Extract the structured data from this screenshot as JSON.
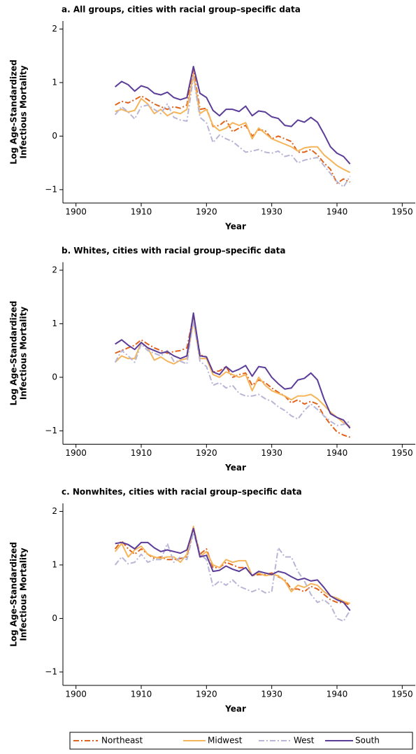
{
  "chart_data": [
    {
      "type": "line",
      "title": "a. All groups, cities with racial group–specific data",
      "xlabel": "Year",
      "ylabel": [
        "Log Age-Standardized",
        "Infectious Mortality"
      ],
      "xlim": [
        1898,
        1952
      ],
      "xticks": [
        1900,
        1910,
        1920,
        1930,
        1940,
        1950
      ],
      "ylim": [
        -1.25,
        2.15
      ],
      "yticks": [
        {
          "value": -1,
          "label": "−1"
        },
        0,
        1,
        2
      ],
      "x": [
        1906,
        1907,
        1908,
        1909,
        1910,
        1911,
        1912,
        1913,
        1914,
        1915,
        1916,
        1917,
        1918,
        1919,
        1920,
        1921,
        1922,
        1923,
        1924,
        1925,
        1926,
        1927,
        1928,
        1929,
        1930,
        1931,
        1932,
        1933,
        1934,
        1935,
        1936,
        1937,
        1938,
        1939,
        1940,
        1941,
        1942
      ],
      "series": [
        {
          "values": [
            0.58,
            0.65,
            0.62,
            0.68,
            0.75,
            0.68,
            0.6,
            0.55,
            0.5,
            0.55,
            0.52,
            0.58,
            1.25,
            0.5,
            0.52,
            0.18,
            0.2,
            0.3,
            0.08,
            0.15,
            0.2,
            0.0,
            0.12,
            0.1,
            -0.05,
            0.0,
            -0.05,
            -0.1,
            -0.3,
            -0.3,
            -0.25,
            -0.35,
            -0.5,
            -0.62,
            -0.88,
            -0.8,
            -0.86
          ]
        },
        {
          "values": [
            0.46,
            0.5,
            0.45,
            0.48,
            0.7,
            0.6,
            0.42,
            0.5,
            0.38,
            0.45,
            0.42,
            0.5,
            1.15,
            0.42,
            0.5,
            0.2,
            0.1,
            0.15,
            0.25,
            0.2,
            0.25,
            -0.05,
            0.15,
            0.05,
            -0.05,
            -0.1,
            -0.15,
            -0.2,
            -0.28,
            -0.22,
            -0.2,
            -0.2,
            -0.35,
            -0.45,
            -0.55,
            -0.62,
            -0.68
          ]
        },
        {
          "values": [
            0.4,
            0.55,
            0.45,
            0.32,
            0.55,
            0.58,
            0.5,
            0.42,
            0.6,
            0.35,
            0.3,
            0.28,
            1.1,
            0.35,
            0.25,
            -0.12,
            0.02,
            -0.05,
            -0.1,
            -0.2,
            -0.3,
            -0.28,
            -0.25,
            -0.3,
            -0.32,
            -0.28,
            -0.38,
            -0.35,
            -0.5,
            -0.45,
            -0.42,
            -0.4,
            -0.55,
            -0.7,
            -0.85,
            -0.95,
            -0.75
          ]
        },
        {
          "values": [
            0.92,
            1.02,
            0.96,
            0.84,
            0.94,
            0.9,
            0.8,
            0.77,
            0.82,
            0.72,
            0.68,
            0.72,
            1.3,
            0.8,
            0.72,
            0.48,
            0.38,
            0.5,
            0.5,
            0.46,
            0.56,
            0.38,
            0.47,
            0.45,
            0.36,
            0.33,
            0.2,
            0.18,
            0.3,
            0.26,
            0.35,
            0.26,
            0.04,
            -0.2,
            -0.32,
            -0.38,
            -0.52
          ]
        }
      ]
    },
    {
      "type": "line",
      "title": "b. Whites, cities with racial group–specific data",
      "xlabel": "Year",
      "ylabel": [
        "Log Age-Standardized",
        "Infectious Mortality"
      ],
      "xlim": [
        1898,
        1952
      ],
      "xticks": [
        1900,
        1910,
        1920,
        1930,
        1940,
        1950
      ],
      "ylim": [
        -1.25,
        2.15
      ],
      "yticks": [
        {
          "value": -1,
          "label": "−1"
        },
        0,
        1,
        2
      ],
      "x": [
        1906,
        1907,
        1908,
        1909,
        1910,
        1911,
        1912,
        1913,
        1914,
        1915,
        1916,
        1917,
        1918,
        1919,
        1920,
        1921,
        1922,
        1923,
        1924,
        1925,
        1926,
        1927,
        1928,
        1929,
        1930,
        1931,
        1932,
        1933,
        1934,
        1935,
        1936,
        1937,
        1938,
        1939,
        1940,
        1941,
        1942
      ],
      "series": [
        {
          "values": [
            0.45,
            0.5,
            0.55,
            0.6,
            0.7,
            0.62,
            0.55,
            0.5,
            0.45,
            0.48,
            0.5,
            0.55,
            1.15,
            0.42,
            0.38,
            0.1,
            0.12,
            0.2,
            0.0,
            0.05,
            0.08,
            -0.15,
            -0.05,
            -0.1,
            -0.2,
            -0.28,
            -0.35,
            -0.48,
            -0.42,
            -0.5,
            -0.45,
            -0.5,
            -0.72,
            -0.88,
            -1.02,
            -1.08,
            -1.12
          ]
        },
        {
          "values": [
            0.28,
            0.4,
            0.35,
            0.35,
            0.65,
            0.55,
            0.32,
            0.38,
            0.3,
            0.25,
            0.32,
            0.35,
            1.05,
            0.35,
            0.35,
            0.05,
            0.0,
            0.1,
            0.05,
            0.0,
            0.05,
            -0.25,
            0.0,
            -0.15,
            -0.25,
            -0.3,
            -0.35,
            -0.42,
            -0.35,
            -0.35,
            -0.32,
            -0.4,
            -0.52,
            -0.65,
            -0.75,
            -0.85,
            -0.92
          ]
        },
        {
          "values": [
            0.28,
            0.5,
            0.4,
            0.28,
            0.62,
            0.5,
            0.45,
            0.4,
            0.5,
            0.3,
            0.3,
            0.25,
            1.08,
            0.3,
            0.2,
            -0.15,
            -0.1,
            -0.2,
            -0.15,
            -0.3,
            -0.35,
            -0.35,
            -0.32,
            -0.4,
            -0.45,
            -0.55,
            -0.62,
            -0.72,
            -0.78,
            -0.62,
            -0.5,
            -0.6,
            -0.72,
            -0.82,
            -0.9,
            -0.88,
            -0.82
          ]
        },
        {
          "values": [
            0.62,
            0.7,
            0.6,
            0.52,
            0.65,
            0.55,
            0.5,
            0.45,
            0.48,
            0.4,
            0.35,
            0.4,
            1.2,
            0.4,
            0.38,
            0.1,
            0.05,
            0.2,
            0.1,
            0.15,
            0.22,
            0.02,
            0.2,
            0.18,
            0.0,
            -0.12,
            -0.22,
            -0.2,
            -0.05,
            -0.02,
            0.08,
            -0.05,
            -0.4,
            -0.68,
            -0.75,
            -0.8,
            -0.95
          ]
        }
      ]
    },
    {
      "type": "line",
      "title": "c. Nonwhites, cities with racial group–specific data",
      "xlabel": "Year",
      "ylabel": [
        "Log Age-Standardized",
        "Infectious Mortality"
      ],
      "xlim": [
        1898,
        1952
      ],
      "xticks": [
        1900,
        1910,
        1920,
        1930,
        1940,
        1950
      ],
      "ylim": [
        -1.25,
        2.15
      ],
      "yticks": [
        {
          "value": -1,
          "label": "−1"
        },
        0,
        1,
        2
      ],
      "x": [
        1906,
        1907,
        1908,
        1909,
        1910,
        1911,
        1912,
        1913,
        1914,
        1915,
        1916,
        1917,
        1918,
        1919,
        1920,
        1921,
        1922,
        1923,
        1924,
        1925,
        1926,
        1927,
        1928,
        1929,
        1930,
        1931,
        1932,
        1933,
        1934,
        1935,
        1936,
        1937,
        1938,
        1939,
        1940,
        1941,
        1942
      ],
      "series": [
        {
          "values": [
            1.3,
            1.45,
            1.3,
            1.2,
            1.3,
            1.2,
            1.12,
            1.15,
            1.1,
            1.1,
            1.12,
            1.15,
            1.7,
            1.2,
            1.3,
            0.95,
            0.95,
            1.05,
            1.0,
            0.95,
            0.95,
            0.8,
            0.82,
            0.82,
            0.85,
            0.78,
            0.72,
            0.55,
            0.55,
            0.5,
            0.6,
            0.55,
            0.45,
            0.35,
            0.3,
            0.3,
            0.25
          ]
        },
        {
          "values": [
            1.25,
            1.4,
            1.15,
            1.28,
            1.35,
            1.2,
            1.15,
            1.12,
            1.15,
            1.15,
            1.05,
            1.2,
            1.72,
            1.15,
            1.25,
            1.0,
            0.95,
            1.1,
            1.05,
            1.08,
            1.08,
            0.8,
            0.85,
            0.8,
            0.82,
            0.8,
            0.7,
            0.5,
            0.62,
            0.58,
            0.65,
            0.62,
            0.5,
            0.42,
            0.38,
            0.32,
            0.28
          ]
        },
        {
          "values": [
            1.0,
            1.15,
            1.02,
            1.05,
            1.2,
            1.05,
            1.1,
            1.1,
            1.4,
            1.05,
            1.15,
            1.1,
            1.6,
            1.2,
            1.1,
            0.6,
            0.7,
            0.62,
            0.72,
            0.6,
            0.55,
            0.5,
            0.55,
            0.48,
            0.5,
            1.32,
            1.15,
            1.15,
            0.88,
            0.7,
            0.45,
            0.3,
            0.35,
            0.25,
            0.0,
            -0.05,
            0.15
          ]
        },
        {
          "values": [
            1.4,
            1.42,
            1.38,
            1.3,
            1.42,
            1.42,
            1.32,
            1.25,
            1.28,
            1.25,
            1.22,
            1.28,
            1.68,
            1.15,
            1.18,
            0.88,
            0.9,
            0.98,
            0.92,
            0.88,
            0.95,
            0.8,
            0.88,
            0.85,
            0.82,
            0.88,
            0.85,
            0.78,
            0.72,
            0.75,
            0.7,
            0.72,
            0.58,
            0.42,
            0.35,
            0.3,
            0.15
          ]
        }
      ]
    }
  ],
  "legend": [
    {
      "name": "Northeast",
      "color": "#e0621b",
      "dash": "dash-dot"
    },
    {
      "name": "Midwest",
      "color": "#f5b55a",
      "dash": "solid"
    },
    {
      "name": "West",
      "color": "#b8b6d6",
      "dash": "dash-dot"
    },
    {
      "name": "South",
      "color": "#5b3c98",
      "dash": "solid"
    }
  ]
}
